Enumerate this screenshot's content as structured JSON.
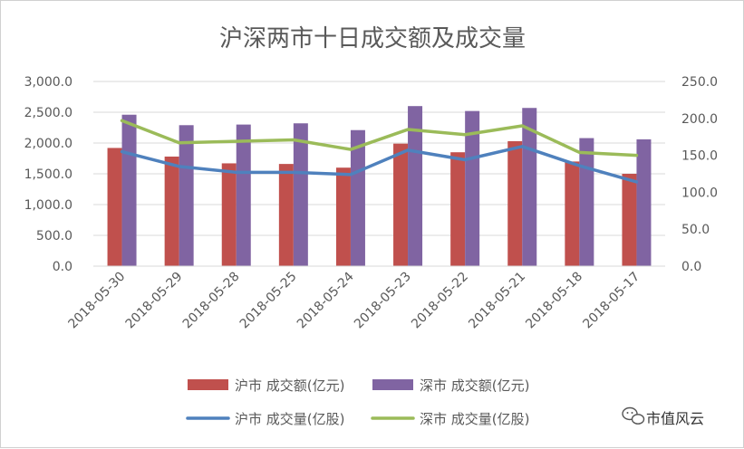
{
  "chart_data": {
    "type": "bar+line",
    "title": "沪深两市十日成交额及成交量",
    "categories": [
      "2018-05-30",
      "2018-05-29",
      "2018-05-28",
      "2018-05-25",
      "2018-05-24",
      "2018-05-23",
      "2018-05-22",
      "2018-05-21",
      "2018-05-18",
      "2018-05-17"
    ],
    "y_left": {
      "ylim": [
        0,
        3000
      ],
      "ticks": [
        "0.0",
        "500.0",
        "1,000.0",
        "1,500.0",
        "2,000.0",
        "2,500.0",
        "3,000.0"
      ]
    },
    "y_right": {
      "ylim": [
        0,
        250
      ],
      "ticks": [
        "0.0",
        "50.0",
        "100.0",
        "150.0",
        "200.0",
        "250.0"
      ]
    },
    "series": [
      {
        "name": "沪市 成交额(亿元)",
        "kind": "bar",
        "axis": "left",
        "color": "#c0504d",
        "values": [
          1920,
          1780,
          1670,
          1660,
          1600,
          1990,
          1850,
          2030,
          1700,
          1500
        ]
      },
      {
        "name": "深市 成交额(亿元)",
        "kind": "bar",
        "axis": "left",
        "color": "#8064a2",
        "values": [
          2460,
          2290,
          2300,
          2320,
          2210,
          2600,
          2520,
          2570,
          2080,
          2060
        ]
      },
      {
        "name": "沪市 成交量(亿股)",
        "kind": "line",
        "axis": "right",
        "color": "#4f81bd",
        "values": [
          155,
          135,
          127,
          127,
          124,
          157,
          144,
          162,
          136,
          114
        ]
      },
      {
        "name": "深市 成交量(亿股)",
        "kind": "line",
        "axis": "right",
        "color": "#9bbb59",
        "values": [
          197,
          167,
          169,
          171,
          158,
          185,
          178,
          190,
          154,
          150
        ]
      }
    ],
    "grid": true,
    "legend_position": "bottom"
  },
  "watermark": {
    "text": "市值风云",
    "icon": "wechat-icon"
  }
}
